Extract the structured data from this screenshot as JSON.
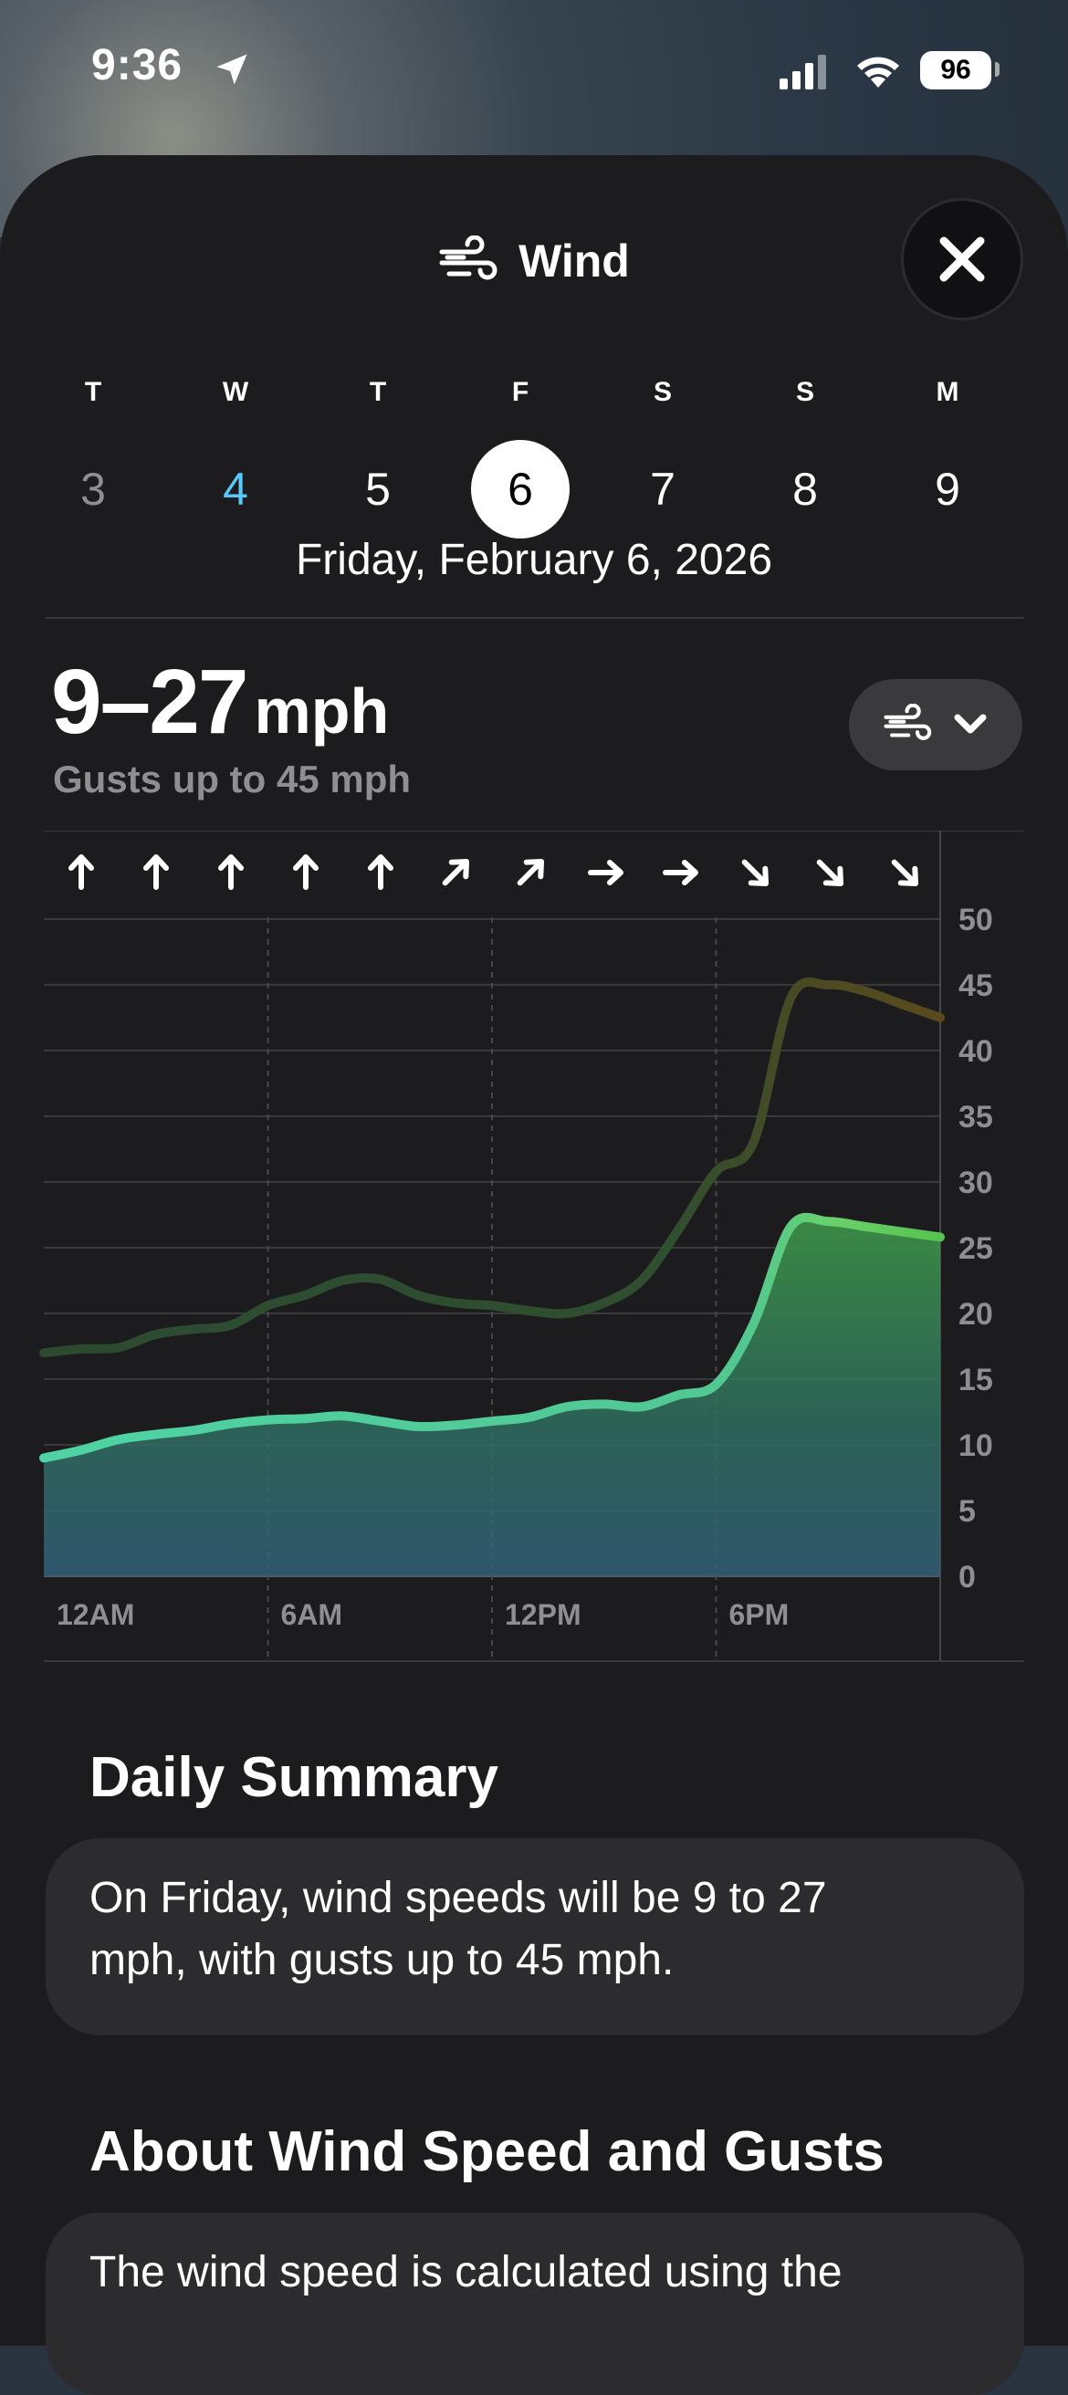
{
  "status": {
    "time": "9:36",
    "battery": "96"
  },
  "header": {
    "title": "Wind"
  },
  "days": [
    {
      "weekday": "T",
      "date": "3",
      "state": "past"
    },
    {
      "weekday": "W",
      "date": "4",
      "state": "today"
    },
    {
      "weekday": "T",
      "date": "5",
      "state": "normal"
    },
    {
      "weekday": "F",
      "date": "6",
      "state": "selected"
    },
    {
      "weekday": "S",
      "date": "7",
      "state": "normal"
    },
    {
      "weekday": "S",
      "date": "8",
      "state": "normal"
    },
    {
      "weekday": "M",
      "date": "9",
      "state": "normal"
    }
  ],
  "selected_date": "Friday, February 6, 2026",
  "wind": {
    "range": "9–27",
    "unit": "mph",
    "gusts": "Gusts up to 45 mph"
  },
  "chart_data": {
    "type": "area",
    "x_labels": [
      "12AM",
      "6AM",
      "12PM",
      "6PM"
    ],
    "ylim": [
      0,
      50
    ],
    "y_ticks": [
      "0",
      "5",
      "10",
      "15",
      "20",
      "25",
      "30",
      "35",
      "40",
      "45",
      "50"
    ],
    "grid": true,
    "direction_arrows": [
      "N",
      "N",
      "N",
      "N",
      "N",
      "NE",
      "NE",
      "E",
      "E",
      "SE",
      "SE",
      "SE"
    ],
    "hours": [
      0,
      1,
      2,
      3,
      4,
      5,
      6,
      7,
      8,
      9,
      10,
      11,
      12,
      13,
      14,
      15,
      16,
      17,
      18,
      19,
      20,
      21,
      22,
      23,
      24
    ],
    "series": [
      {
        "values": [
          9,
          9.6,
          10.4,
          10.8,
          11.1,
          11.6,
          11.9,
          12,
          12.2,
          11.8,
          11.4,
          11.5,
          11.8,
          12.1,
          12.9,
          13.1,
          12.9,
          13.8,
          14.6,
          19.2,
          26.6,
          27,
          26.6,
          26.2,
          25.8
        ],
        "color": "#4fd3a4"
      },
      {
        "values": [
          17,
          17.3,
          17.4,
          18.4,
          18.8,
          19.1,
          20.6,
          21.4,
          22.5,
          22.6,
          21.4,
          20.8,
          20.6,
          20.2,
          20,
          20.8,
          22.5,
          26.4,
          30.8,
          33,
          44,
          45,
          44.5,
          43.5,
          42.5
        ],
        "color": "#2f4d2f"
      }
    ],
    "colors": {
      "speed": "#4fd3a4",
      "gust": "#2f4d2f",
      "gust_peak": "#5a4a1e"
    }
  },
  "daily_summary": {
    "title": "Daily Summary",
    "text": "On Friday, wind speeds will be 9 to 27 mph, with gusts up to 45 mph."
  },
  "about": {
    "title": "About Wind Speed and Gusts",
    "text": "The wind speed is calculated using the"
  }
}
